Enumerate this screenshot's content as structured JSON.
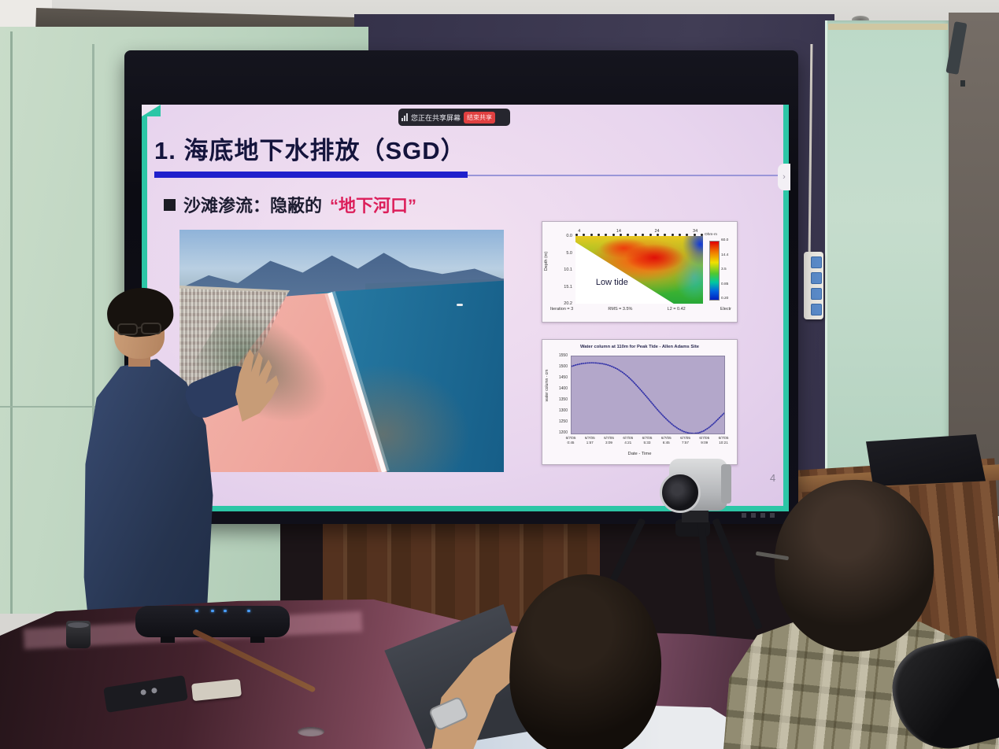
{
  "scene": {
    "description": "Conference room photo: a presenter stands beside a large wall display sharing a slide about submarine groundwater discharge; a PTZ camera on a tripod and two seated attendees are in the foreground."
  },
  "screen_ui": {
    "share_banner": {
      "icon": "signal-bars-icon",
      "text": "您正在共享屏幕",
      "button_label": "结束共享",
      "button_color": "#e04040"
    },
    "nav_handle_glyph": "›"
  },
  "slide": {
    "title": "1. 海底地下水排放（SGD）",
    "bullet_marker": "■",
    "bullet_text": "沙滩渗流：隐蔽的",
    "bullet_highlight": "“地下河口”",
    "page_number": "4",
    "colors": {
      "accent_underline": "#2020cc",
      "highlight_red": "#dc1e5a",
      "frame_teal": "#2cc6a6",
      "slide_background": "#e8d5ee"
    }
  },
  "chart_data": [
    {
      "type": "heatmap",
      "title": "",
      "annotation": "Low tide",
      "ylabel": "Depth (m)",
      "y_ticks": [
        "0.0",
        "5.0",
        "10.1",
        "15.1",
        "20.2"
      ],
      "x_ticks": [
        "4",
        "14",
        "24",
        "34"
      ],
      "caption_parts": [
        "Iteration = 3",
        "RMS = 3.5%",
        "L2 = 0.42",
        "Electr"
      ],
      "colorbar": {
        "label": "Ohm-m",
        "ticks": [
          "60.0",
          "14.4",
          "3.5",
          "0.85",
          "0.20"
        ]
      },
      "layout": {
        "electrode_count": 18,
        "description": "Electrical resistivity cross-section: high-resistivity red/orange wedge near the surface thinning seaward, green background, blue low-resistivity zone at right edge; blank white triangle at lower left below survey depth."
      }
    },
    {
      "type": "line",
      "title": "Water column at 110m for Peak Tide - Allen Adams Site",
      "ylabel": "water column - cm",
      "xlabel": "Date - Time",
      "ylim": [
        1200,
        1550
      ],
      "y_ticks": [
        1550,
        1500,
        1450,
        1400,
        1350,
        1300,
        1250,
        1200
      ],
      "x_tick_labels": [
        "6/7/05 0:45",
        "6/7/05 1:57",
        "6/7/05 3:09",
        "6/7/05 4:21",
        "6/7/05 5:33",
        "6/7/05 6:45",
        "6/7/05 7:57",
        "6/7/05 9:09",
        "6/7/05 10:21"
      ],
      "series": [
        {
          "name": "water column",
          "values": [
            1505,
            1512,
            1517,
            1520,
            1521,
            1520,
            1517,
            1512,
            1504,
            1493,
            1478,
            1460,
            1438,
            1413,
            1387,
            1360,
            1332,
            1305,
            1280,
            1257,
            1237,
            1221,
            1209,
            1202,
            1200,
            1203,
            1212,
            1227,
            1247,
            1270,
            1293
          ]
        }
      ],
      "legend": null,
      "grid": false,
      "plot_area_color": "#b3a7ca",
      "line_color": "#3333a8"
    }
  ]
}
